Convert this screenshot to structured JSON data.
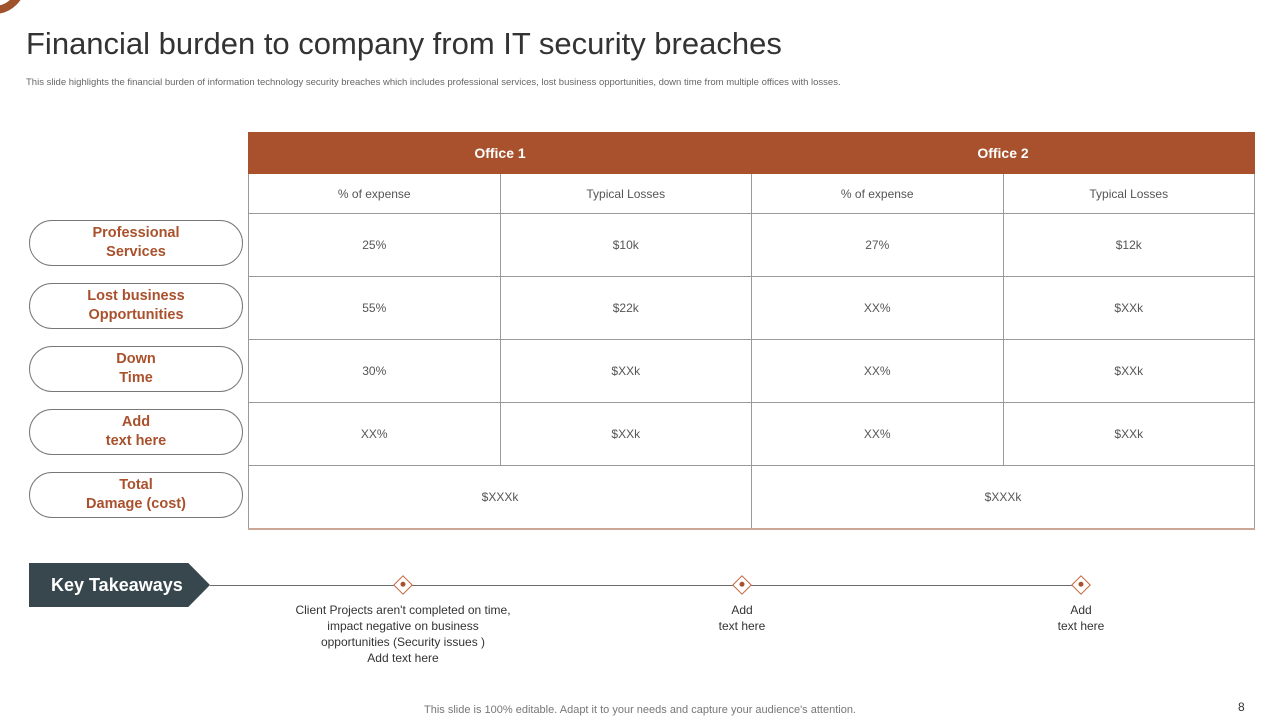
{
  "slide": {
    "title": "Financial burden to company from IT security breaches",
    "subtitle": "This slide highlights the financial burden of information technology security breaches which includes professional services, lost business opportunities, down time from multiple offices with losses.",
    "page_number": "8",
    "footer": "This slide is 100% editable. Adapt it to your needs and capture your audience's attention."
  },
  "colors": {
    "accent": "#a9512c",
    "dark": "#38474e"
  },
  "table": {
    "offices": [
      "Office 1",
      "Office 2"
    ],
    "subheaders": [
      "% of expense",
      "Typical Losses",
      "% of expense",
      "Typical Losses"
    ],
    "rows": [
      {
        "label": "Professional\nServices",
        "cells": [
          "25%",
          "$10k",
          "27%",
          "$12k"
        ]
      },
      {
        "label": "Lost business\nOpportunities",
        "cells": [
          "55%",
          "$22k",
          "XX%",
          "$XXk"
        ]
      },
      {
        "label": "Down\nTime",
        "cells": [
          "30%",
          "$XXk",
          "XX%",
          "$XXk"
        ]
      },
      {
        "label": "Add\ntext here",
        "cells": [
          "XX%",
          "$XXk",
          "XX%",
          "$XXk"
        ]
      }
    ],
    "total": {
      "label": "Total\nDamage (cost)",
      "cells": [
        "$XXXk",
        "$XXXk"
      ]
    }
  },
  "takeaways": {
    "title": "Key Takeaways",
    "items": [
      "Client Projects aren't completed on time,\nimpact negative on business\nopportunities (Security issues )\nAdd text here",
      "Add\ntext here",
      "Add\ntext here"
    ]
  }
}
